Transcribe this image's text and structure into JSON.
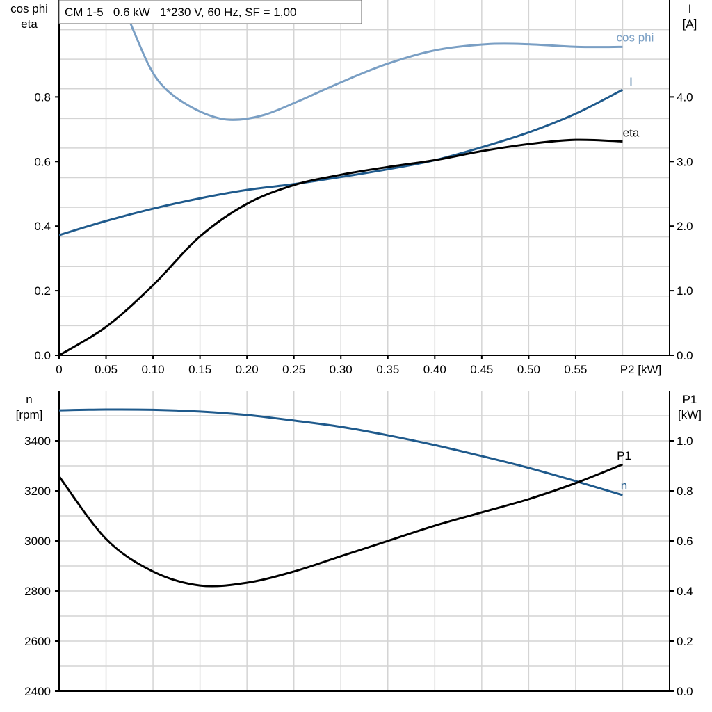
{
  "chart_data": [
    {
      "type": "line",
      "title": "CM 1-5   0.6 kW   1*230 V, 60 Hz, SF = 1,00",
      "xlabel": "P2 [kW]",
      "ylabel_left": [
        "cos phi",
        "eta"
      ],
      "ylabel_right": [
        "I",
        "[A]"
      ],
      "xlim": [
        0,
        0.65
      ],
      "ylim_left": [
        0,
        1.1
      ],
      "ylim_right": [
        0,
        5.5
      ],
      "x_ticks": [
        "0",
        "0.05",
        "0.10",
        "0.15",
        "0.20",
        "0.25",
        "0.30",
        "0.35",
        "0.40",
        "0.45",
        "0.50",
        "0.55"
      ],
      "y_ticks_left": [
        "0.0",
        "0.2",
        "0.4",
        "0.6",
        "0.8"
      ],
      "y_ticks_right": [
        "0.0",
        "1.0",
        "2.0",
        "3.0",
        "4.0"
      ],
      "grid": true,
      "series": [
        {
          "name": "cos phi",
          "axis": "left",
          "color": "#7a9fc4",
          "x": [
            0.066,
            0.08,
            0.096,
            0.11,
            0.13,
            0.159,
            0.185,
            0.218,
            0.255,
            0.3,
            0.348,
            0.4,
            0.455,
            0.5,
            0.552,
            0.6
          ],
          "y": [
            1.1,
            1.0,
            0.895,
            0.835,
            0.787,
            0.744,
            0.729,
            0.744,
            0.787,
            0.845,
            0.901,
            0.944,
            0.963,
            0.963,
            0.955,
            0.955
          ]
        },
        {
          "name": "I",
          "axis": "right",
          "color": "#1f5a8c",
          "x": [
            0,
            0.05,
            0.1,
            0.15,
            0.2,
            0.25,
            0.3,
            0.35,
            0.4,
            0.45,
            0.5,
            0.55,
            0.6
          ],
          "y": [
            1.86,
            2.08,
            2.27,
            2.43,
            2.56,
            2.65,
            2.76,
            2.88,
            3.02,
            3.22,
            3.45,
            3.74,
            4.11
          ]
        },
        {
          "name": "eta",
          "axis": "left",
          "color": "#000000",
          "x": [
            0,
            0.05,
            0.1,
            0.15,
            0.2,
            0.25,
            0.3,
            0.35,
            0.4,
            0.45,
            0.5,
            0.55,
            0.6
          ],
          "y": [
            0,
            0.088,
            0.217,
            0.368,
            0.469,
            0.527,
            0.559,
            0.583,
            0.604,
            0.632,
            0.654,
            0.667,
            0.662
          ]
        }
      ]
    },
    {
      "type": "line",
      "xlim": [
        0,
        0.65
      ],
      "ylabel_left": [
        "n",
        "[rpm]"
      ],
      "ylabel_right": [
        "P1",
        "[kW]"
      ],
      "ylim_left": [
        2400,
        3600
      ],
      "ylim_right": [
        0,
        1.2
      ],
      "y_ticks_left": [
        "2400",
        "2600",
        "2800",
        "3000",
        "3200",
        "3400"
      ],
      "y_ticks_right": [
        "0.0",
        "0.2",
        "0.4",
        "0.6",
        "0.8",
        "1.0"
      ],
      "grid": true,
      "series": [
        {
          "name": "n",
          "axis": "left",
          "color": "#1f5a8c",
          "x": [
            0,
            0.05,
            0.1,
            0.15,
            0.2,
            0.25,
            0.3,
            0.35,
            0.4,
            0.45,
            0.5,
            0.55,
            0.6
          ],
          "y": [
            3522,
            3525,
            3524,
            3517,
            3503,
            3481,
            3456,
            3422,
            3383,
            3339,
            3292,
            3239,
            3183
          ]
        },
        {
          "name": "P1",
          "axis": "right",
          "color": "#000000",
          "x": [
            0,
            0.05,
            0.1,
            0.15,
            0.2,
            0.25,
            0.3,
            0.35,
            0.4,
            0.45,
            0.5,
            0.55,
            0.6
          ],
          "y": [
            0.858,
            0.608,
            0.478,
            0.422,
            0.433,
            0.478,
            0.539,
            0.6,
            0.661,
            0.714,
            0.767,
            0.831,
            0.906
          ]
        }
      ]
    }
  ]
}
